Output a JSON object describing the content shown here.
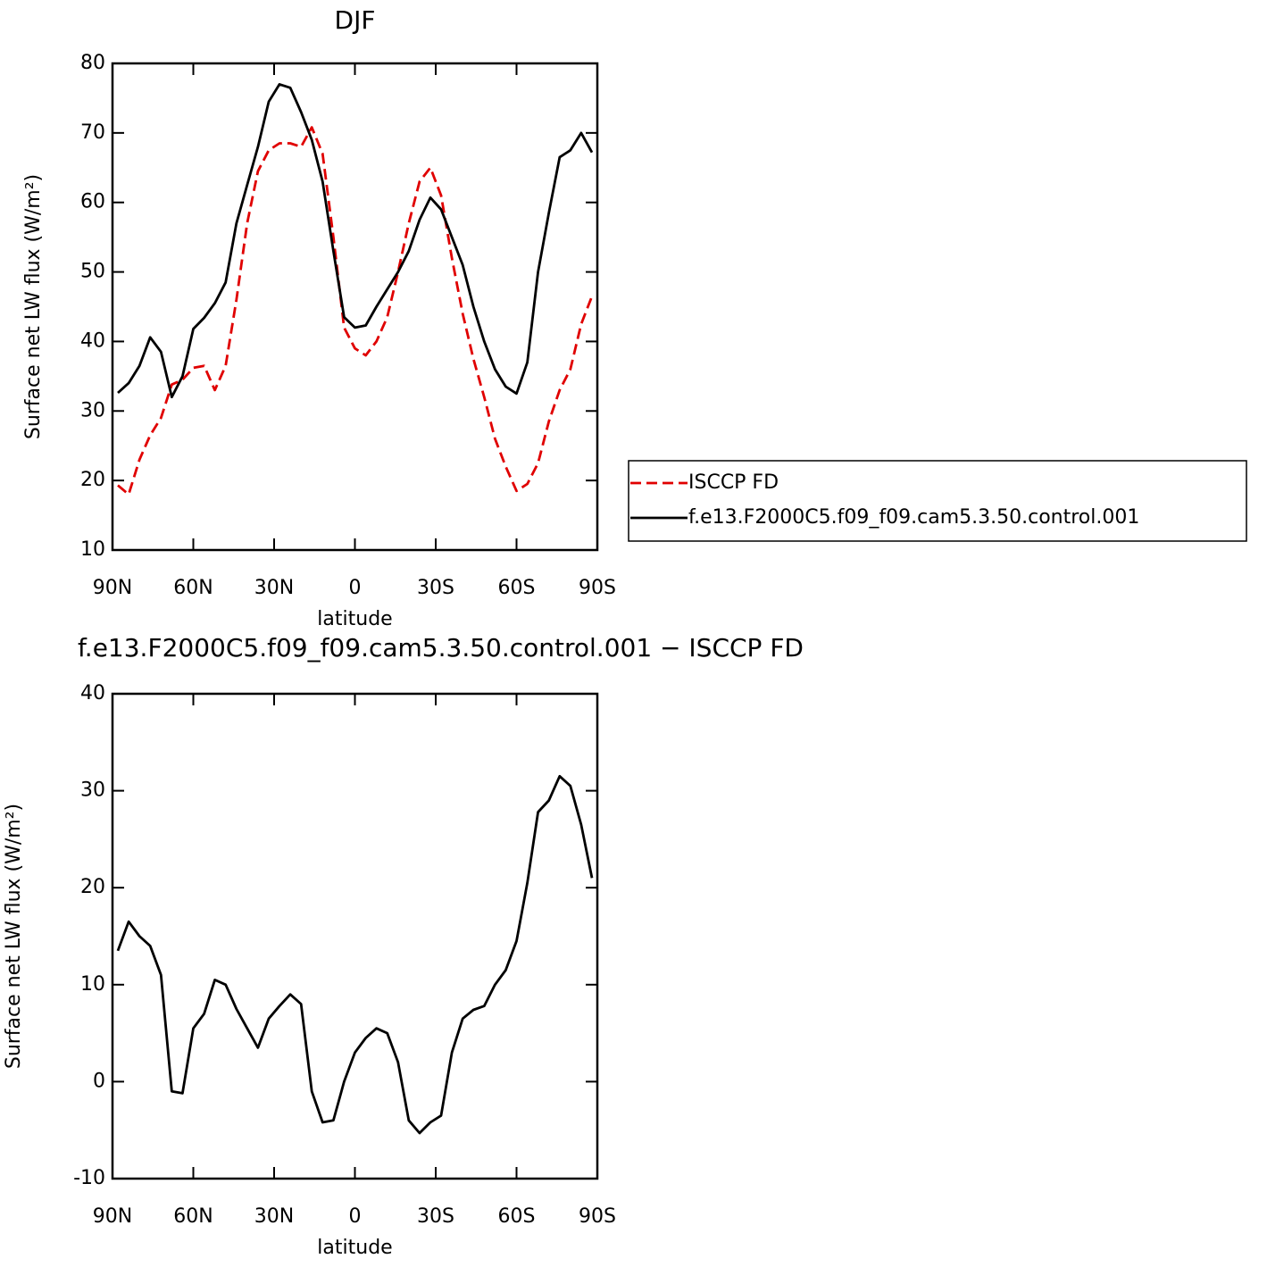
{
  "chart_data": [
    {
      "type": "line",
      "title": "DJF",
      "xlabel": "latitude",
      "ylabel": "Surface net LW flux (W/m²)",
      "x": [
        88,
        84,
        80,
        76,
        72,
        68,
        64,
        60,
        56,
        52,
        48,
        44,
        40,
        36,
        32,
        28,
        24,
        20,
        16,
        12,
        8,
        4,
        0,
        -4,
        -8,
        -12,
        -16,
        -20,
        -24,
        -28,
        -32,
        -36,
        -40,
        -44,
        -48,
        -52,
        -56,
        -60,
        -64,
        -68,
        -72,
        -76,
        -80,
        -84,
        -88
      ],
      "xlim": [
        90,
        -90
      ],
      "xticks": [
        {
          "value": 90,
          "label": "90N"
        },
        {
          "value": 60,
          "label": "60N"
        },
        {
          "value": 30,
          "label": "30N"
        },
        0,
        {
          "value": -30,
          "label": "30S"
        },
        {
          "value": -60,
          "label": "60S"
        },
        {
          "value": -90,
          "label": "90S"
        }
      ],
      "ylim": [
        10,
        80
      ],
      "yticks": [
        10,
        20,
        30,
        40,
        50,
        60,
        70,
        80
      ],
      "legend": "right",
      "series": [
        {
          "name": "ISCCP FD",
          "color": "#e00000",
          "dashed": true,
          "values": [
            19.3,
            18,
            23,
            26.5,
            29,
            33.8,
            34.5,
            36.2,
            36.5,
            33,
            36.5,
            46,
            57,
            64.5,
            67.5,
            68.5,
            68.5,
            68,
            70.8,
            67,
            55,
            42,
            39,
            38,
            40,
            43.5,
            50,
            57,
            63,
            65,
            61,
            52,
            44,
            37.5,
            32,
            26,
            22,
            18.5,
            19.5,
            22.5,
            28.5,
            33,
            36,
            42.5,
            46.5
          ]
        },
        {
          "name": "f.e13.F2000C5.f09_f09.cam5.3.50.control.001",
          "color": "#000000",
          "dashed": false,
          "values": [
            32.6,
            34,
            36.5,
            40.6,
            38.5,
            32,
            35,
            41.8,
            43.4,
            45.5,
            48.5,
            57,
            62.5,
            68,
            74.5,
            77,
            76.5,
            73,
            69,
            63,
            53,
            43.5,
            42,
            42.3,
            45,
            47.5,
            50,
            53,
            57.5,
            60.7,
            59,
            55,
            51,
            45,
            40,
            36,
            33.5,
            32.5,
            37,
            50,
            58.5,
            66.5,
            67.5,
            70,
            67.2
          ]
        }
      ]
    },
    {
      "type": "line",
      "title": "f.e13.F2000C5.f09_f09.cam5.3.50.control.001 − ISCCP FD",
      "xlabel": "latitude",
      "ylabel": "Surface net LW flux (W/m²)",
      "x": [
        88,
        84,
        80,
        76,
        72,
        68,
        64,
        60,
        56,
        52,
        48,
        44,
        40,
        36,
        32,
        28,
        24,
        20,
        16,
        12,
        8,
        4,
        0,
        -4,
        -8,
        -12,
        -16,
        -20,
        -24,
        -28,
        -32,
        -36,
        -40,
        -44,
        -48,
        -52,
        -56,
        -60,
        -64,
        -68,
        -72,
        -76,
        -80,
        -84,
        -88
      ],
      "xlim": [
        90,
        -90
      ],
      "xticks": [
        {
          "value": 90,
          "label": "90N"
        },
        {
          "value": 60,
          "label": "60N"
        },
        {
          "value": 30,
          "label": "30N"
        },
        0,
        {
          "value": -30,
          "label": "30S"
        },
        {
          "value": -60,
          "label": "60S"
        },
        {
          "value": -90,
          "label": "90S"
        }
      ],
      "ylim": [
        -10,
        40
      ],
      "yticks": [
        -10,
        0,
        10,
        20,
        30,
        40
      ],
      "series": [
        {
          "color": "#000000",
          "dashed": false,
          "values": [
            13.5,
            16.5,
            15,
            14,
            11,
            -1,
            -1.2,
            5.5,
            7,
            10.5,
            10,
            7.5,
            5.5,
            3.5,
            6.5,
            7.8,
            9,
            8,
            -1,
            -4.2,
            -4,
            0,
            3,
            4.5,
            5.5,
            5,
            2,
            -4,
            -5.3,
            -4.2,
            -3.5,
            3,
            6.5,
            7.4,
            7.8,
            10,
            11.5,
            14.5,
            20.5,
            27.8,
            29,
            31.5,
            30.5,
            26.5,
            21
          ]
        }
      ]
    }
  ]
}
